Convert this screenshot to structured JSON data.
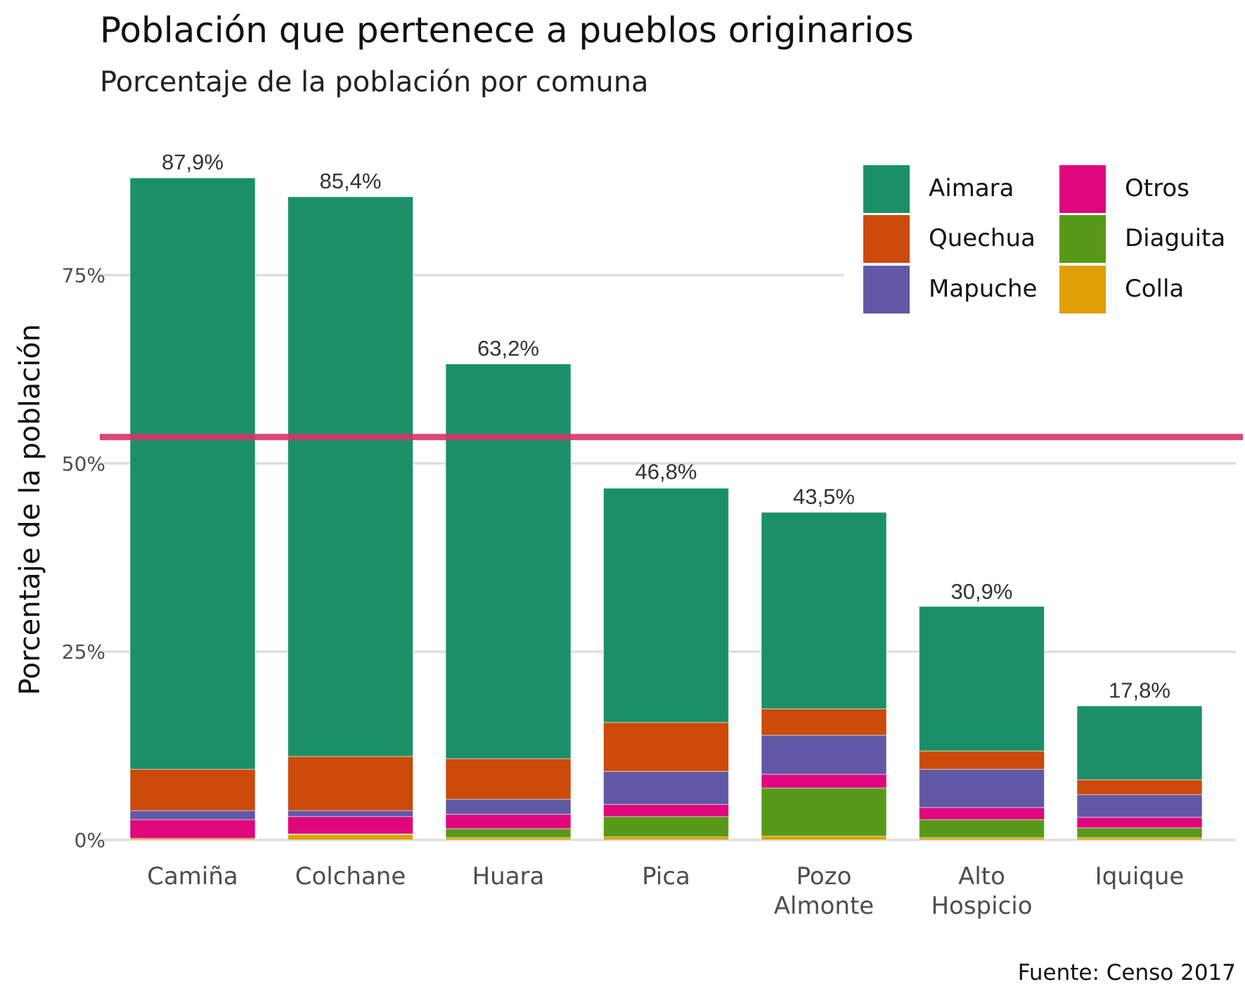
{
  "chart_data": {
    "type": "bar",
    "stacked": true,
    "title": "Población que pertenece a pueblos originarios",
    "subtitle": "Porcentaje de la población por comuna",
    "ylabel": "Porcentaje de la población",
    "xlabel": "",
    "caption": "Fuente: Censo 2017",
    "ylim": [
      0,
      90
    ],
    "yticks": [
      0,
      25,
      50,
      75
    ],
    "ytick_labels": [
      "0%",
      "25%",
      "50%",
      "75%"
    ],
    "grid": true,
    "legend_position": "top-right",
    "reference_line": {
      "value": 53.5,
      "color": "#d6336c"
    },
    "categories": [
      [
        "Camiña"
      ],
      [
        "Colchane"
      ],
      [
        "Huara"
      ],
      [
        "Pica"
      ],
      [
        "Pozo",
        "Almonte"
      ],
      [
        "Alto",
        "Hospicio"
      ],
      [
        "Iquique"
      ]
    ],
    "totals": [
      87.9,
      85.4,
      63.2,
      46.8,
      43.5,
      30.9,
      17.8
    ],
    "total_labels": [
      "87,9%",
      "85,4%",
      "63,2%",
      "46,8%",
      "43,5%",
      "30,9%",
      "17,8%"
    ],
    "stack_order": [
      "Colla",
      "Diaguita",
      "Otros",
      "Mapuche",
      "Quechua",
      "Aimara"
    ],
    "series": [
      {
        "name": "Aimara",
        "color": "#1b9068",
        "values": [
          78.5,
          74.3,
          52.4,
          31.1,
          26.1,
          19.2,
          9.8
        ]
      },
      {
        "name": "Quechua",
        "color": "#cc4a0a",
        "values": [
          5.5,
          7.2,
          5.4,
          6.5,
          3.5,
          2.4,
          2.0
        ]
      },
      {
        "name": "Mapuche",
        "color": "#6159a6",
        "values": [
          1.2,
          0.8,
          2.0,
          4.4,
          5.2,
          5.1,
          3.0
        ]
      },
      {
        "name": "Otros",
        "color": "#e0077d",
        "values": [
          2.5,
          2.3,
          1.9,
          1.6,
          1.8,
          1.6,
          1.4
        ]
      },
      {
        "name": "Diaguita",
        "color": "#58991a",
        "values": [
          0.0,
          0.1,
          1.2,
          2.7,
          6.4,
          2.4,
          1.3
        ]
      },
      {
        "name": "Colla",
        "color": "#e09f05",
        "values": [
          0.2,
          0.7,
          0.3,
          0.4,
          0.5,
          0.3,
          0.3
        ]
      }
    ],
    "legend_layout": [
      [
        "Aimara",
        "Otros"
      ],
      [
        "Quechua",
        "Diaguita"
      ],
      [
        "Mapuche",
        "Colla"
      ]
    ]
  }
}
